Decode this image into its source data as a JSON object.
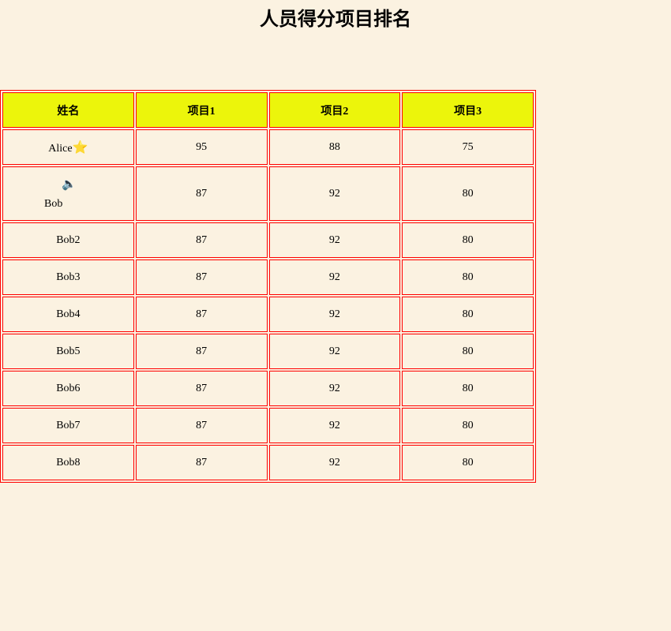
{
  "title": "人员得分项目排名",
  "headers": [
    "姓名",
    "项目1",
    "项目2",
    "项目3"
  ],
  "rows": [
    {
      "name": "Alice",
      "icon": "star-icon",
      "scores": [
        "95",
        "88",
        "75"
      ]
    },
    {
      "name": "Bob",
      "icon": "speaker-icon",
      "scores": [
        "87",
        "92",
        "80"
      ]
    },
    {
      "name": "Bob2",
      "scores": [
        "87",
        "92",
        "80"
      ]
    },
    {
      "name": "Bob3",
      "scores": [
        "87",
        "92",
        "80"
      ]
    },
    {
      "name": "Bob4",
      "scores": [
        "87",
        "92",
        "80"
      ]
    },
    {
      "name": "Bob5",
      "scores": [
        "87",
        "92",
        "80"
      ]
    },
    {
      "name": "Bob6",
      "scores": [
        "87",
        "92",
        "80"
      ]
    },
    {
      "name": "Bob7",
      "scores": [
        "87",
        "92",
        "80"
      ]
    },
    {
      "name": "Bob8",
      "scores": [
        "87",
        "92",
        "80"
      ]
    }
  ],
  "colors": {
    "header_bg": "#ecf50b",
    "border": "#ff0000",
    "background": "#fbf2e1"
  }
}
